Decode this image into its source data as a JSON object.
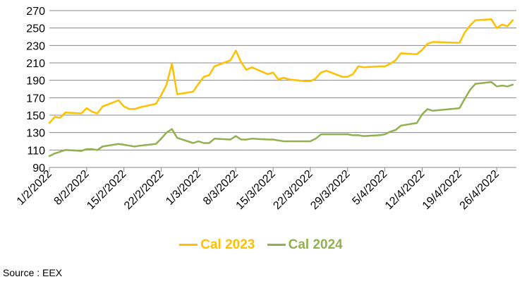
{
  "chart_data": {
    "type": "line",
    "title": "",
    "xlabel": "",
    "ylabel": "",
    "ylim": [
      90,
      270
    ],
    "yticks": [
      90,
      110,
      130,
      150,
      170,
      190,
      210,
      230,
      250,
      270
    ],
    "grid": true,
    "legend_position": "bottom",
    "x_tick_labels": [
      "1/2/2022",
      "8/2/2022",
      "15/2/2022",
      "22/2/2022",
      "1/3/2022",
      "8/3/2022",
      "15/3/2022",
      "22/3/2022",
      "29/3/2022",
      "5/4/2022",
      "12/4/2022",
      "19/4/2022",
      "26/4/2022"
    ],
    "series": [
      {
        "name": "Cal 2023",
        "color": "#FFC000",
        "points": [
          [
            "1/2/2022",
            141
          ],
          [
            "2/2/2022",
            148
          ],
          [
            "3/2/2022",
            147
          ],
          [
            "4/2/2022",
            153
          ],
          [
            "7/2/2022",
            152
          ],
          [
            "8/2/2022",
            158
          ],
          [
            "9/2/2022",
            154
          ],
          [
            "10/2/2022",
            152
          ],
          [
            "11/2/2022",
            160
          ],
          [
            "14/2/2022",
            167
          ],
          [
            "15/2/2022",
            160
          ],
          [
            "16/2/2022",
            157
          ],
          [
            "17/2/2022",
            157
          ],
          [
            "18/2/2022",
            159
          ],
          [
            "21/2/2022",
            163
          ],
          [
            "22/2/2022",
            173
          ],
          [
            "23/2/2022",
            185
          ],
          [
            "24/2/2022",
            209
          ],
          [
            "25/2/2022",
            174
          ],
          [
            "28/2/2022",
            177
          ],
          [
            "1/3/2022",
            186
          ],
          [
            "2/3/2022",
            194
          ],
          [
            "3/3/2022",
            196
          ],
          [
            "4/3/2022",
            206
          ],
          [
            "7/3/2022",
            213
          ],
          [
            "8/3/2022",
            224
          ],
          [
            "9/3/2022",
            211
          ],
          [
            "10/3/2022",
            202
          ],
          [
            "11/3/2022",
            205
          ],
          [
            "14/3/2022",
            197
          ],
          [
            "15/3/2022",
            199
          ],
          [
            "16/3/2022",
            191
          ],
          [
            "17/3/2022",
            193
          ],
          [
            "18/3/2022",
            191
          ],
          [
            "21/3/2022",
            189
          ],
          [
            "22/3/2022",
            189
          ],
          [
            "23/3/2022",
            192
          ],
          [
            "24/3/2022",
            199
          ],
          [
            "25/3/2022",
            201
          ],
          [
            "28/3/2022",
            194
          ],
          [
            "29/3/2022",
            194
          ],
          [
            "30/3/2022",
            197
          ],
          [
            "31/3/2022",
            206
          ],
          [
            "1/4/2022",
            205
          ],
          [
            "4/4/2022",
            206
          ],
          [
            "5/4/2022",
            206
          ],
          [
            "6/4/2022",
            209
          ],
          [
            "7/4/2022",
            213
          ],
          [
            "8/4/2022",
            221
          ],
          [
            "11/4/2022",
            220
          ],
          [
            "12/4/2022",
            225
          ],
          [
            "13/4/2022",
            232
          ],
          [
            "14/4/2022",
            234
          ],
          [
            "19/4/2022",
            233
          ],
          [
            "20/4/2022",
            245
          ],
          [
            "21/4/2022",
            253
          ],
          [
            "22/4/2022",
            259
          ],
          [
            "25/4/2022",
            260
          ],
          [
            "26/4/2022",
            250
          ],
          [
            "27/4/2022",
            254
          ],
          [
            "28/4/2022",
            252
          ],
          [
            "29/4/2022",
            259
          ]
        ]
      },
      {
        "name": "Cal 2024",
        "color": "#92B050",
        "points": [
          [
            "1/2/2022",
            103
          ],
          [
            "2/2/2022",
            106
          ],
          [
            "3/2/2022",
            108
          ],
          [
            "4/2/2022",
            110
          ],
          [
            "7/2/2022",
            109
          ],
          [
            "8/2/2022",
            111
          ],
          [
            "9/2/2022",
            111
          ],
          [
            "10/2/2022",
            110
          ],
          [
            "11/2/2022",
            114
          ],
          [
            "14/2/2022",
            117
          ],
          [
            "15/2/2022",
            116
          ],
          [
            "16/2/2022",
            115
          ],
          [
            "17/2/2022",
            114
          ],
          [
            "18/2/2022",
            115
          ],
          [
            "21/2/2022",
            117
          ],
          [
            "22/2/2022",
            123
          ],
          [
            "23/2/2022",
            130
          ],
          [
            "24/2/2022",
            134
          ],
          [
            "25/2/2022",
            124
          ],
          [
            "28/2/2022",
            118
          ],
          [
            "1/3/2022",
            120
          ],
          [
            "2/3/2022",
            118
          ],
          [
            "3/3/2022",
            118
          ],
          [
            "4/3/2022",
            123
          ],
          [
            "7/3/2022",
            122
          ],
          [
            "8/3/2022",
            126
          ],
          [
            "9/3/2022",
            122
          ],
          [
            "10/3/2022",
            122
          ],
          [
            "11/3/2022",
            123
          ],
          [
            "14/3/2022",
            122
          ],
          [
            "15/3/2022",
            122
          ],
          [
            "16/3/2022",
            121
          ],
          [
            "17/3/2022",
            120
          ],
          [
            "18/3/2022",
            120
          ],
          [
            "21/3/2022",
            120
          ],
          [
            "22/3/2022",
            120
          ],
          [
            "23/3/2022",
            123
          ],
          [
            "24/3/2022",
            128
          ],
          [
            "25/3/2022",
            128
          ],
          [
            "28/3/2022",
            128
          ],
          [
            "29/3/2022",
            128
          ],
          [
            "30/3/2022",
            127
          ],
          [
            "31/3/2022",
            127
          ],
          [
            "1/4/2022",
            126
          ],
          [
            "4/4/2022",
            127
          ],
          [
            "5/4/2022",
            128
          ],
          [
            "6/4/2022",
            131
          ],
          [
            "7/4/2022",
            133
          ],
          [
            "8/4/2022",
            138
          ],
          [
            "11/4/2022",
            141
          ],
          [
            "12/4/2022",
            151
          ],
          [
            "13/4/2022",
            157
          ],
          [
            "14/4/2022",
            155
          ],
          [
            "19/4/2022",
            158
          ],
          [
            "20/4/2022",
            169
          ],
          [
            "21/4/2022",
            179
          ],
          [
            "22/4/2022",
            186
          ],
          [
            "25/4/2022",
            188
          ],
          [
            "26/4/2022",
            183
          ],
          [
            "27/4/2022",
            184
          ],
          [
            "28/4/2022",
            183
          ],
          [
            "29/4/2022",
            185
          ]
        ]
      }
    ]
  },
  "source_text": "Source : EEX"
}
